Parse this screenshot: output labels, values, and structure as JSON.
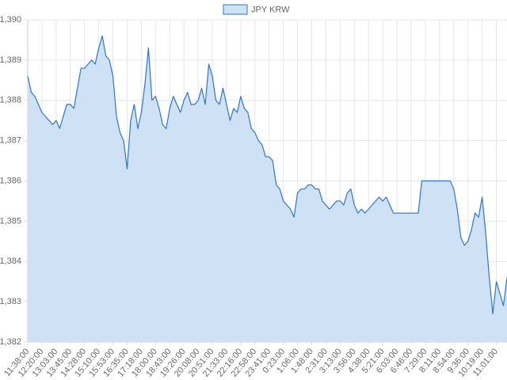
{
  "chart_data": {
    "type": "line",
    "categories": [
      "11:38:00",
      null,
      null,
      null,
      "12:20:00",
      null,
      null,
      null,
      "13:03:00",
      null,
      null,
      null,
      "13:45:00",
      null,
      null,
      null,
      "14:28:00",
      null,
      null,
      null,
      "15:10:00",
      null,
      null,
      null,
      "15:53:00",
      null,
      null,
      null,
      "16:35:00",
      null,
      null,
      null,
      "17:18:00",
      null,
      null,
      null,
      "18:00:00",
      null,
      null,
      null,
      "18:43:00",
      null,
      null,
      null,
      "19:26:00",
      null,
      null,
      null,
      "20:08:00",
      null,
      null,
      null,
      "20:51:00",
      null,
      null,
      null,
      "21:33:00",
      null,
      null,
      null,
      "22:16:00",
      null,
      null,
      null,
      "22:58:00",
      null,
      null,
      null,
      "23:41:00",
      null,
      null,
      null,
      "0:23:00",
      null,
      null,
      null,
      "1:06:00",
      null,
      null,
      null,
      "1:48:00",
      null,
      null,
      null,
      "2:31:00",
      null,
      null,
      null,
      "3:13:00",
      null,
      null,
      null,
      "3:56:00",
      null,
      null,
      null,
      "4:38:00",
      null,
      null,
      null,
      "5:21:00",
      null,
      null,
      null,
      "6:03:00",
      null,
      null,
      null,
      "6:46:00",
      null,
      null,
      null,
      "7:29:00",
      null,
      null,
      null,
      "8:11:00",
      null,
      null,
      null,
      "8:54:00",
      null,
      null,
      null,
      "9:36:00",
      null,
      null,
      null,
      "10:19:00",
      null,
      null,
      null,
      "11:01:00",
      null,
      null,
      null
    ],
    "series": [
      {
        "name": "JPY KRW",
        "color": "#2f76c8",
        "fill": "#cfe1f5",
        "values": [
          1388.6,
          1388.2,
          1388.1,
          1387.9,
          1387.7,
          1387.6,
          1387.5,
          1387.4,
          1387.5,
          1387.3,
          1387.6,
          1387.9,
          1387.9,
          1387.8,
          1388.3,
          1388.8,
          1388.8,
          1388.9,
          1389.0,
          1388.9,
          1389.3,
          1389.6,
          1389.1,
          1389.0,
          1388.6,
          1387.6,
          1387.2,
          1387.0,
          1386.3,
          1387.5,
          1387.9,
          1387.3,
          1387.7,
          1388.4,
          1389.3,
          1388.0,
          1388.1,
          1387.8,
          1387.4,
          1387.3,
          1387.8,
          1388.1,
          1387.9,
          1387.7,
          1388.0,
          1388.2,
          1387.9,
          1387.9,
          1388.0,
          1388.3,
          1387.9,
          1388.9,
          1388.6,
          1388.0,
          1387.9,
          1388.3,
          1387.9,
          1387.5,
          1387.8,
          1387.7,
          1388.1,
          1387.8,
          1387.7,
          1387.3,
          1387.2,
          1387.0,
          1386.9,
          1386.6,
          1386.6,
          1386.5,
          1385.9,
          1385.8,
          1385.5,
          1385.4,
          1385.3,
          1385.1,
          1385.7,
          1385.8,
          1385.8,
          1385.9,
          1385.9,
          1385.8,
          1385.8,
          1385.5,
          1385.4,
          1385.3,
          1385.4,
          1385.5,
          1385.5,
          1385.4,
          1385.7,
          1385.8,
          1385.4,
          1385.2,
          1385.3,
          1385.2,
          1385.3,
          1385.4,
          1385.5,
          1385.6,
          1385.5,
          1385.6,
          1385.4,
          1385.2,
          1385.2,
          1385.2,
          1385.2,
          1385.2,
          1385.2,
          1385.2,
          1385.2,
          1386.0,
          1386.0,
          1386.0,
          1386.0,
          1386.0,
          1386.0,
          1386.0,
          1386.0,
          1386.0,
          1385.8,
          1385.3,
          1384.6,
          1384.4,
          1384.5,
          1384.8,
          1385.2,
          1385.1,
          1385.6,
          1384.7,
          1383.6,
          1382.7,
          1383.5,
          1383.2,
          1382.9,
          1383.6
        ]
      }
    ],
    "ylim": [
      1382,
      1390
    ],
    "yticks": [
      {
        "value": 1382,
        "label": "1,382"
      },
      {
        "value": 1383,
        "label": "1,383"
      },
      {
        "value": 1384,
        "label": "1,384"
      },
      {
        "value": 1385,
        "label": "1,385"
      },
      {
        "value": 1386,
        "label": "1,386"
      },
      {
        "value": 1387,
        "label": "1,387"
      },
      {
        "value": 1388,
        "label": "1,388"
      },
      {
        "value": 1389,
        "label": "1,389"
      },
      {
        "value": 1390,
        "label": "1,390"
      }
    ],
    "grid": true,
    "legend": "top"
  }
}
